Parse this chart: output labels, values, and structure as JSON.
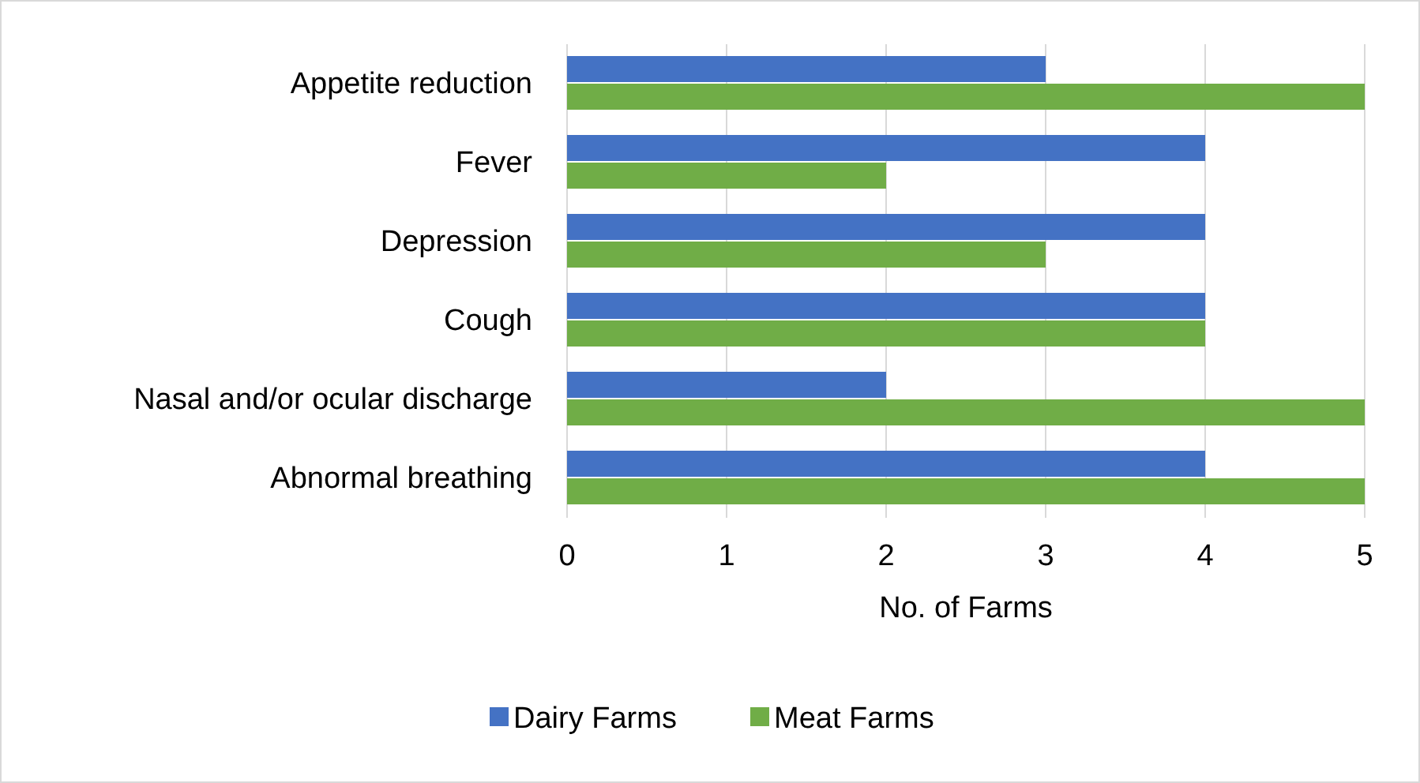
{
  "chart_data": {
    "type": "bar",
    "orientation": "horizontal",
    "xlabel": "No. of Farms",
    "categories": [
      "Appetite reduction",
      "Fever",
      "Depression",
      "Cough",
      "Nasal and/or ocular discharge",
      "Abnormal breathing"
    ],
    "series": [
      {
        "name": "Dairy Farms",
        "color": "#4472c4",
        "values": [
          3,
          4,
          4,
          4,
          2,
          4
        ]
      },
      {
        "name": "Meat Farms",
        "color": "#70ad47",
        "values": [
          5,
          2,
          3,
          4,
          5,
          5
        ]
      }
    ],
    "xlim": [
      0,
      5
    ],
    "xticks": [
      0,
      1,
      2,
      3,
      4,
      5
    ],
    "grid": "x",
    "legend": "bottom"
  }
}
